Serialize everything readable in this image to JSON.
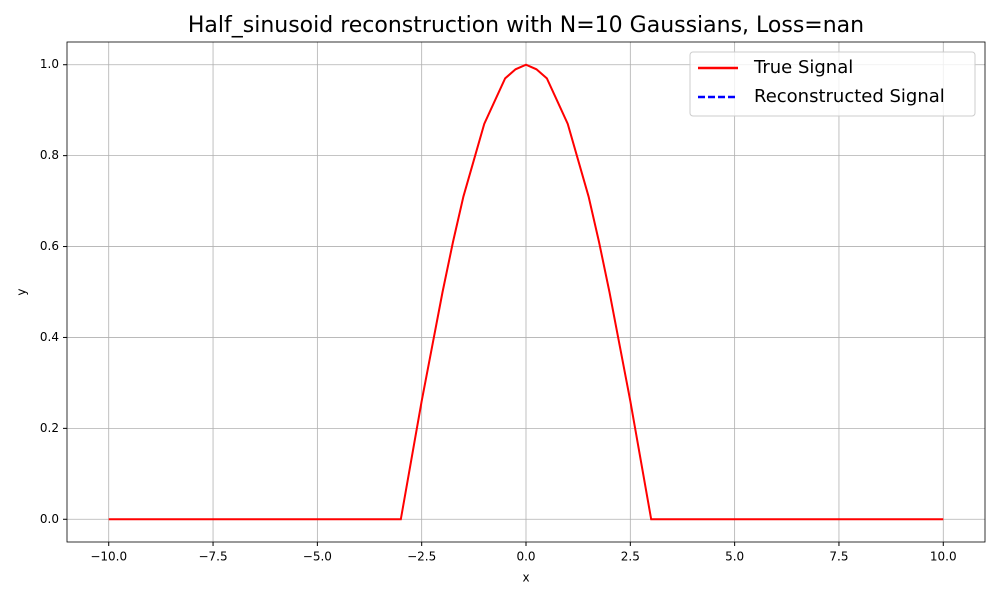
{
  "chart_data": {
    "type": "line",
    "title": "Half_sinusoid reconstruction with N=10 Gaussians, Loss=nan",
    "x_label": "x",
    "y_label": "y",
    "x": [
      -10,
      -3,
      -2.75,
      -2.5,
      -2.25,
      -2,
      -1.75,
      -1.5,
      -1.25,
      -1,
      -0.75,
      -0.5,
      -0.25,
      0,
      0.25,
      0.5,
      0.75,
      1,
      1.25,
      1.5,
      1.75,
      2,
      2.25,
      2.5,
      2.75,
      3,
      10
    ],
    "series": [
      {
        "name": "True Signal",
        "color": "#ff0000",
        "dash": "solid",
        "values": [
          0,
          0,
          0.13,
          0.26,
          0.38,
          0.5,
          0.61,
          0.71,
          0.79,
          0.87,
          0.92,
          0.97,
          0.99,
          1,
          0.99,
          0.97,
          0.92,
          0.87,
          0.79,
          0.71,
          0.61,
          0.5,
          0.38,
          0.26,
          0.13,
          0,
          0
        ]
      },
      {
        "name": "Reconstructed Signal",
        "color": "#0000ff",
        "dash": "dashed",
        "values": [
          null,
          null,
          null,
          null,
          null,
          null,
          null,
          null,
          null,
          null,
          null,
          null,
          null,
          null,
          null,
          null,
          null,
          null,
          null,
          null,
          null,
          null,
          null,
          null,
          null,
          null,
          null
        ]
      }
    ],
    "xlim": [
      -11,
      11
    ],
    "ylim": [
      -0.05,
      1.05
    ],
    "xticks": [
      {
        "value": -10,
        "label": "−10.0"
      },
      {
        "value": -7.5,
        "label": "−7.5"
      },
      {
        "value": -5,
        "label": "−5.0"
      },
      {
        "value": -2.5,
        "label": "−2.5"
      },
      {
        "value": 0,
        "label": "0.0"
      },
      {
        "value": 2.5,
        "label": "2.5"
      },
      {
        "value": 5,
        "label": "5.0"
      },
      {
        "value": 7.5,
        "label": "7.5"
      },
      {
        "value": 10,
        "label": "10.0"
      }
    ],
    "yticks": [
      {
        "value": 0,
        "label": "0.0"
      },
      {
        "value": 0.2,
        "label": "0.2"
      },
      {
        "value": 0.4,
        "label": "0.4"
      },
      {
        "value": 0.6,
        "label": "0.6"
      },
      {
        "value": 0.8,
        "label": "0.8"
      },
      {
        "value": 1,
        "label": "1.0"
      }
    ],
    "grid": true,
    "legend_position": "upper-right"
  }
}
